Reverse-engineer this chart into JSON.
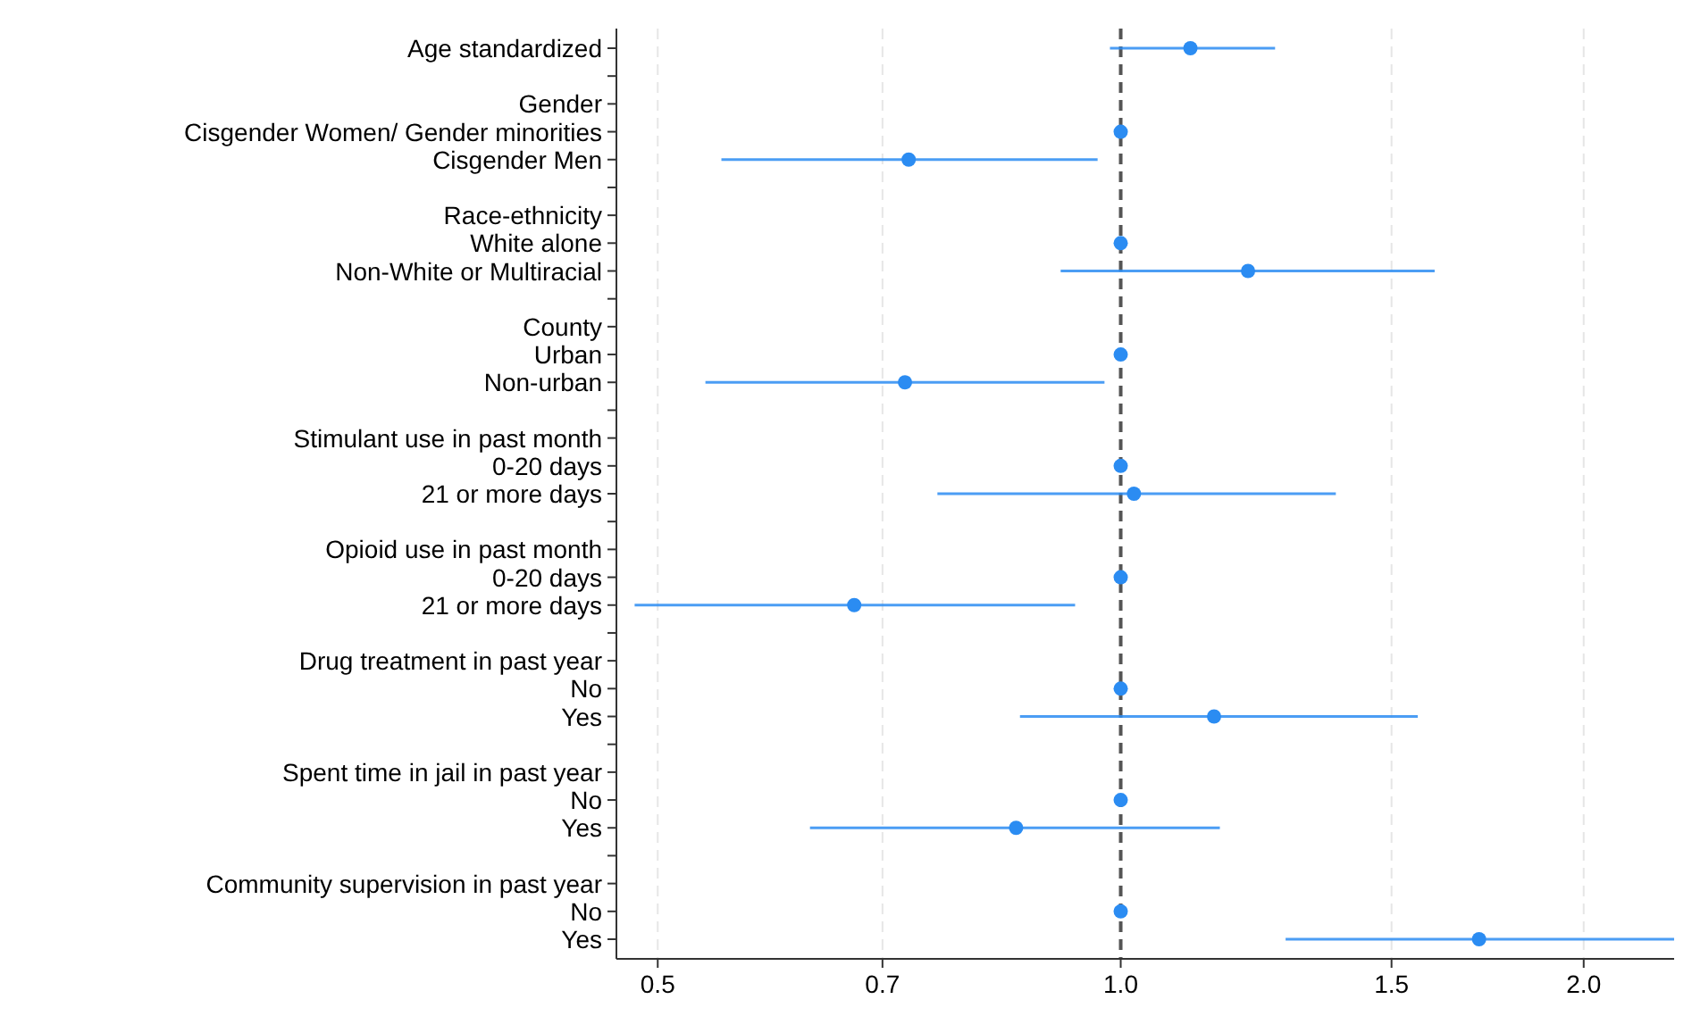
{
  "chart_data": {
    "type": "scatter",
    "orientation": "horizontal",
    "log": "x",
    "grid": "x",
    "marker": "circle",
    "categories": [
      "Age standardized",
      null,
      "Gender",
      "Cisgender Women/ Gender minorities",
      "Cisgender Men",
      null,
      "Race-ethnicity",
      "White alone",
      "Non-White or Multiracial",
      null,
      "County",
      "Urban",
      "Non-urban",
      null,
      "Stimulant use in past month",
      "0-20 days",
      "21 or more days",
      null,
      "Opioid use in past month",
      "0-20 days",
      "21 or more days",
      null,
      "Drug treatment in past year",
      "No",
      "Yes",
      null,
      "Spent time in jail in past year",
      "No",
      "Yes",
      null,
      "Community supervision in past year",
      "No",
      "Yes"
    ],
    "series": [
      {
        "color": "#2b8cf2",
        "values": [
          1.11,
          null,
          null,
          1.0,
          0.728,
          null,
          null,
          1.0,
          1.21,
          null,
          null,
          1.0,
          0.724,
          null,
          null,
          1.0,
          1.02,
          null,
          null,
          1.0,
          0.671,
          null,
          null,
          1.0,
          1.15,
          null,
          null,
          1.0,
          0.855,
          null,
          null,
          1.0,
          1.71
        ],
        "errors": [
          [
            0.984,
            1.26
          ],
          null,
          null,
          null,
          [
            0.55,
            0.966
          ],
          null,
          null,
          null,
          [
            0.914,
            1.6
          ],
          null,
          null,
          null,
          [
            0.537,
            0.976
          ],
          null,
          null,
          null,
          [
            0.76,
            1.38
          ],
          null,
          null,
          null,
          [
            0.483,
            0.934
          ],
          null,
          null,
          null,
          [
            0.86,
            1.56
          ],
          null,
          null,
          null,
          [
            0.628,
            1.16
          ],
          null,
          null,
          null,
          [
            1.28,
            2.29
          ]
        ]
      }
    ],
    "xlim": [
      0.47,
      2.29
    ],
    "xticks": [
      {
        "value": 0.5,
        "label": "0.5"
      },
      {
        "value": 0.7,
        "label": "0.7"
      },
      {
        "value": 1,
        "label": "1.0"
      },
      {
        "value": 1.5,
        "label": "1.5"
      },
      {
        "value": 2,
        "label": "2.0"
      }
    ],
    "ref_lines": [
      {
        "axis": "x",
        "value": 1,
        "label": null,
        "color": "#555555",
        "line_style": "dashed"
      }
    ]
  }
}
